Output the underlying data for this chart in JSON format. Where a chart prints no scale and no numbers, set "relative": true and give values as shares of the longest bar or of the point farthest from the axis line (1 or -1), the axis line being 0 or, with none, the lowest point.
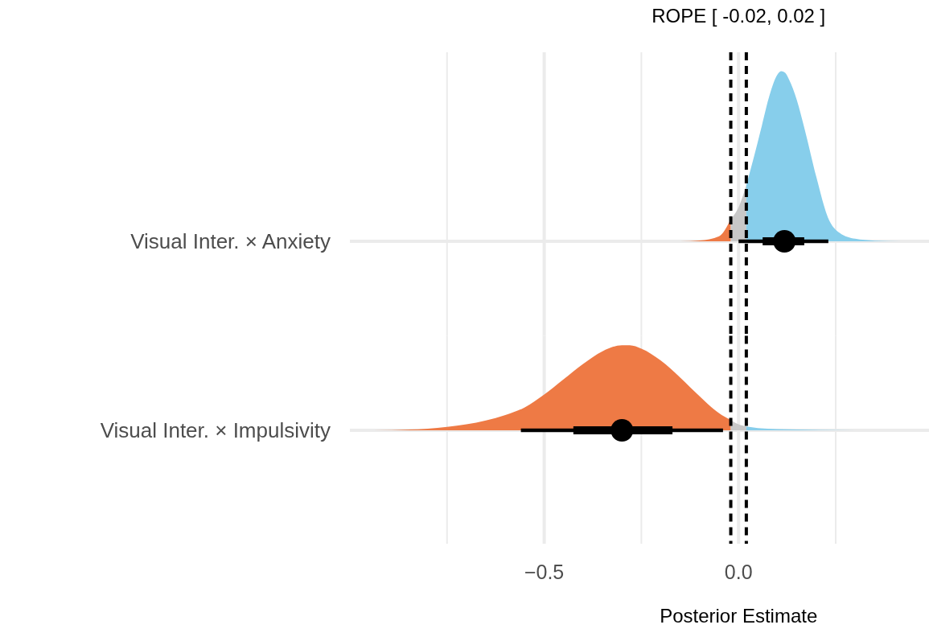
{
  "chart_data": [
    {
      "type": "area",
      "title": "ROPE [ -0.02, 0.02 ]",
      "ylabel": "Visual Inter. × Anxiety",
      "relative": true,
      "tick_labels": false,
      "xlim": [
        -1.0,
        0.49
      ],
      "xticks": [
        {
          "value": -0.75,
          "label": null
        },
        {
          "value": -0.5,
          "label": null
        },
        {
          "value": -0.25,
          "label": null
        },
        {
          "value": 0,
          "label": null
        },
        {
          "value": 0.25,
          "label": null
        }
      ],
      "grid": true,
      "ref_lines": [
        {
          "axis": "x",
          "value": -0.02,
          "line_style": "dashed",
          "color": "#000000"
        },
        {
          "axis": "x",
          "value": 0.02,
          "line_style": "dashed",
          "color": "#000000"
        }
      ],
      "series": [
        {
          "type": "area",
          "color": "#ee7a45",
          "x": [
            -0.15,
            -0.1,
            -0.05,
            -0.02
          ],
          "values": [
            0,
            0.005,
            0.03,
            0.13
          ]
        },
        {
          "type": "area",
          "color": "#c8c8c8",
          "x": [
            -0.02,
            0,
            0.02
          ],
          "values": [
            0.13,
            0.2,
            0.33
          ]
        },
        {
          "type": "area",
          "color": "#87ceeb",
          "x": [
            0.02,
            0.04,
            0.06,
            0.08,
            0.1,
            0.11,
            0.12,
            0.13,
            0.15,
            0.17,
            0.2,
            0.23,
            0.26,
            0.3,
            0.35,
            0.42
          ],
          "values": [
            0.33,
            0.5,
            0.68,
            0.86,
            0.98,
            1.0,
            0.99,
            0.95,
            0.83,
            0.66,
            0.38,
            0.14,
            0.05,
            0.015,
            0.004,
            0
          ]
        },
        {
          "type": "scatter",
          "color": "#000000",
          "marker": "circle",
          "x": [
            0.118
          ],
          "values": [
            0
          ],
          "xerrors": [
            [
              0.062,
              0.169
            ]
          ]
        },
        {
          "type": "line",
          "color": "#000000",
          "x": [
            0.0,
            0.231
          ],
          "values": [
            0,
            0
          ]
        }
      ]
    },
    {
      "type": "area",
      "xlabel": "Posterior Estimate",
      "ylabel": "Visual Inter. × Impulsivity",
      "relative": true,
      "tick_labels": "x",
      "xlim": [
        -1.0,
        0.49
      ],
      "xticks": [
        {
          "value": -0.75,
          "label": null
        },
        {
          "value": -0.5,
          "label": "−0.5"
        },
        {
          "value": -0.25,
          "label": null
        },
        {
          "value": 0,
          "label": "0.0"
        },
        {
          "value": 0.25,
          "label": null
        }
      ],
      "grid": true,
      "ref_lines": [
        {
          "axis": "x",
          "value": -0.02,
          "line_style": "dashed",
          "color": "#000000"
        },
        {
          "axis": "x",
          "value": 0.02,
          "line_style": "dashed",
          "color": "#000000"
        }
      ],
      "series": [
        {
          "type": "area",
          "color": "#ee7a45",
          "x": [
            -0.94,
            -0.8,
            -0.7,
            -0.6,
            -0.55,
            -0.5,
            -0.45,
            -0.4,
            -0.35,
            -0.3,
            -0.28,
            -0.25,
            -0.2,
            -0.15,
            -0.1,
            -0.05,
            -0.02
          ],
          "values": [
            0,
            0.02,
            0.07,
            0.18,
            0.27,
            0.42,
            0.6,
            0.78,
            0.93,
            1.0,
            1.0,
            0.96,
            0.82,
            0.62,
            0.4,
            0.2,
            0.12
          ]
        },
        {
          "type": "area",
          "color": "#c8c8c8",
          "x": [
            -0.02,
            0,
            0.02
          ],
          "values": [
            0.12,
            0.07,
            0.045
          ]
        },
        {
          "type": "area",
          "color": "#87ceeb",
          "x": [
            0.02,
            0.05,
            0.15,
            0.3
          ],
          "values": [
            0.045,
            0.027,
            0.009,
            0
          ]
        },
        {
          "type": "scatter",
          "color": "#000000",
          "marker": "circle",
          "x": [
            -0.3
          ],
          "values": [
            0
          ],
          "xerrors": [
            [
              -0.425,
              -0.17
            ]
          ]
        },
        {
          "type": "line",
          "color": "#000000",
          "x": [
            -0.56,
            -0.04
          ],
          "values": [
            0,
            0
          ]
        }
      ]
    }
  ]
}
